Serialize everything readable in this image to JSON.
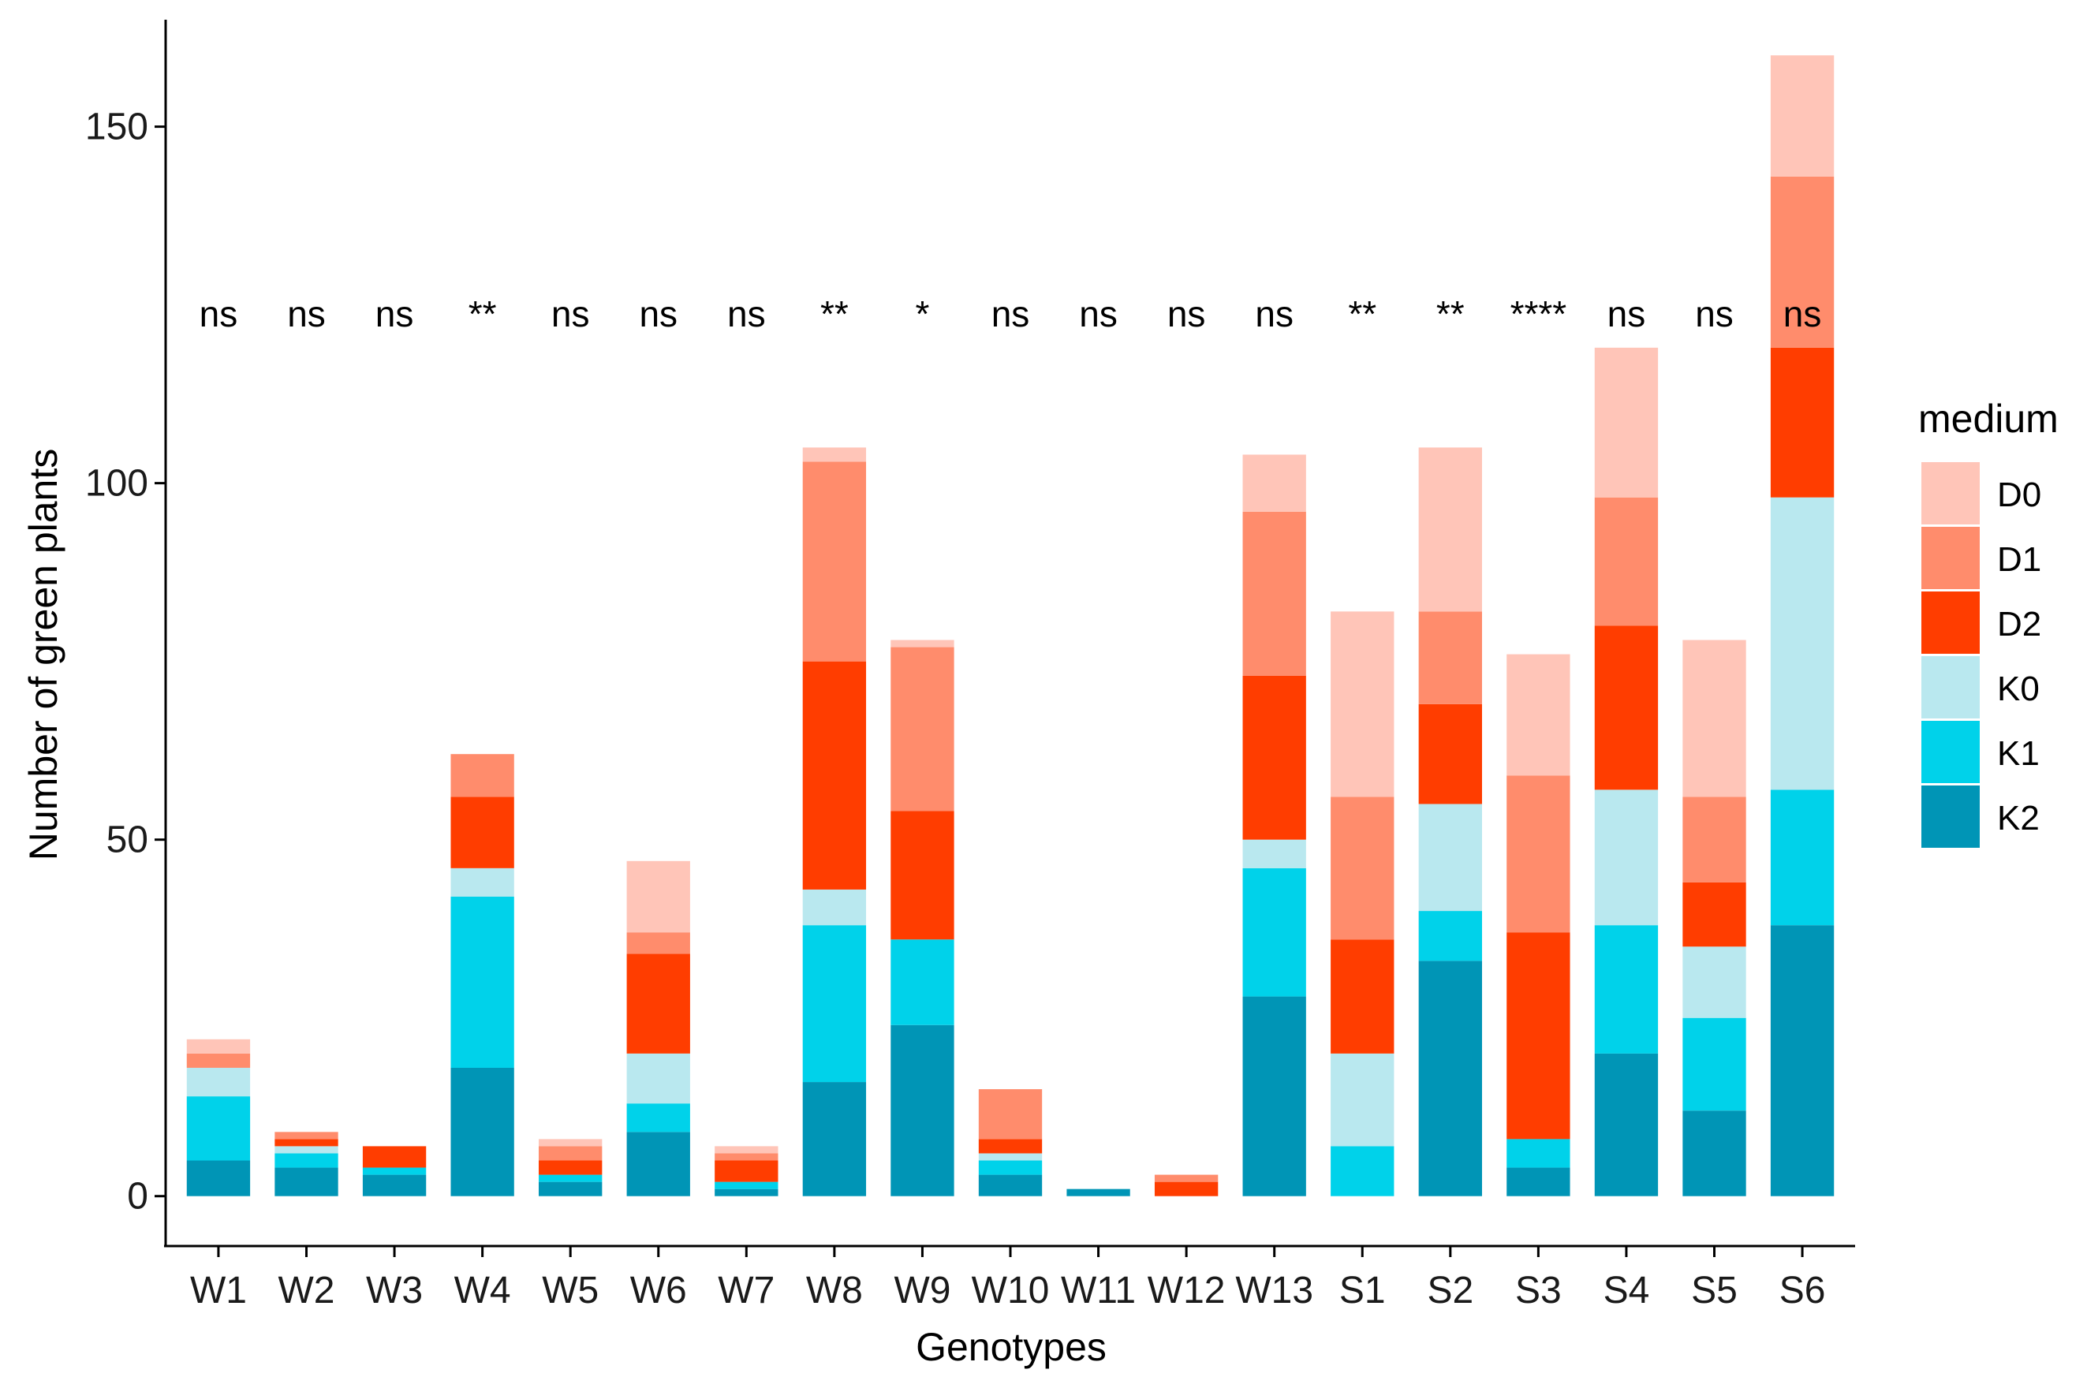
{
  "chart_data": {
    "type": "bar",
    "stacked": true,
    "title": "",
    "xlabel": "Genotypes",
    "ylabel": "Number of green plants",
    "ylim": [
      -7,
      165
    ],
    "yticks": [
      0,
      50,
      100,
      150
    ],
    "grid": false,
    "legend_title": "medium",
    "legend_position": "right",
    "categories": [
      "W1",
      "W2",
      "W3",
      "W4",
      "W5",
      "W6",
      "W7",
      "W8",
      "W9",
      "W10",
      "W11",
      "W12",
      "W13",
      "S1",
      "S2",
      "S3",
      "S4",
      "S5",
      "S6"
    ],
    "significance": [
      "ns",
      "ns",
      "ns",
      "**",
      "ns",
      "ns",
      "ns",
      "**",
      "*",
      "ns",
      "ns",
      "ns",
      "ns",
      "**",
      "**",
      "****",
      "ns",
      "ns",
      "ns"
    ],
    "series": [
      {
        "name": "K2",
        "color": "#0095B6",
        "values": [
          5,
          4,
          3,
          18,
          2,
          9,
          1,
          16,
          24,
          3,
          1,
          0,
          28,
          0,
          33,
          4,
          20,
          12,
          38
        ]
      },
      {
        "name": "K1",
        "color": "#00D2EA",
        "values": [
          9,
          2,
          1,
          24,
          1,
          4,
          1,
          22,
          12,
          2,
          0,
          0,
          18,
          7,
          7,
          4,
          18,
          13,
          19
        ]
      },
      {
        "name": "K0",
        "color": "#B9E8EF",
        "values": [
          4,
          1,
          0,
          4,
          0,
          7,
          0,
          5,
          0,
          1,
          0,
          0,
          4,
          13,
          15,
          0,
          19,
          10,
          41
        ]
      },
      {
        "name": "D2",
        "color": "#FF3D00",
        "values": [
          0,
          1,
          3,
          10,
          2,
          14,
          3,
          32,
          18,
          2,
          0,
          2,
          23,
          16,
          14,
          29,
          23,
          9,
          21
        ]
      },
      {
        "name": "D1",
        "color": "#FF8C6C",
        "values": [
          2,
          1,
          0,
          6,
          2,
          3,
          1,
          28,
          23,
          7,
          0,
          1,
          23,
          20,
          13,
          22,
          18,
          12,
          24
        ]
      },
      {
        "name": "D0",
        "color": "#FFC5B8",
        "values": [
          2,
          0,
          0,
          0,
          1,
          10,
          1,
          2,
          1,
          0,
          0,
          0,
          8,
          26,
          23,
          17,
          21,
          22,
          17
        ]
      }
    ]
  }
}
